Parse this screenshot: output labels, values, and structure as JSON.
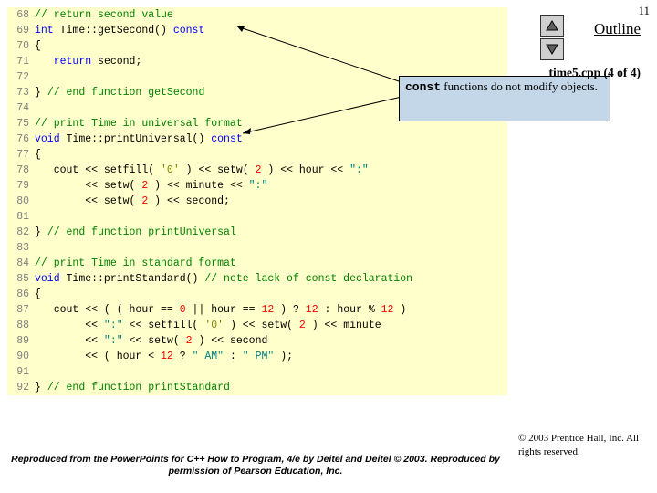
{
  "slideNumber": "11",
  "outline": "Outline",
  "fileLabel": "time5.cpp (4 of 4)",
  "callout": {
    "pre": "const",
    "post": " functions do not modify objects."
  },
  "copyright": "© 2003 Prentice Hall, Inc. All rights reserved.",
  "footer": "Reproduced from the PowerPoints for C++ How to Program, 4/e by Deitel and Deitel © 2003. Reproduced by permission of Pearson Education, Inc.",
  "lines": [
    {
      "n": "68",
      "seg": [
        {
          "c": "cm",
          "t": "// return second value"
        }
      ]
    },
    {
      "n": "69",
      "seg": [
        {
          "c": "kw",
          "t": "int"
        },
        {
          "t": " Time::getSecond() "
        },
        {
          "c": "kw",
          "t": "const"
        }
      ]
    },
    {
      "n": "70",
      "seg": [
        {
          "t": "{"
        }
      ]
    },
    {
      "n": "71",
      "seg": [
        {
          "t": "   "
        },
        {
          "c": "kw",
          "t": "return"
        },
        {
          "t": " second;"
        }
      ]
    },
    {
      "n": "72",
      "seg": []
    },
    {
      "n": "73",
      "seg": [
        {
          "t": "} "
        },
        {
          "c": "cm",
          "t": "// end function getSecond"
        }
      ]
    },
    {
      "n": "74",
      "seg": []
    },
    {
      "n": "75",
      "seg": [
        {
          "c": "cm",
          "t": "// print Time in universal format"
        }
      ]
    },
    {
      "n": "76",
      "seg": [
        {
          "c": "kw",
          "t": "void"
        },
        {
          "t": " Time::printUniversal() "
        },
        {
          "c": "kw",
          "t": "const"
        }
      ]
    },
    {
      "n": "77",
      "seg": [
        {
          "t": "{"
        }
      ]
    },
    {
      "n": "78",
      "seg": [
        {
          "t": "   cout << setfill( "
        },
        {
          "c": "ch",
          "t": "'0'"
        },
        {
          "t": " ) << setw( "
        },
        {
          "c": "nm",
          "t": "2"
        },
        {
          "t": " ) << hour << "
        },
        {
          "c": "st",
          "t": "\":\""
        }
      ]
    },
    {
      "n": "79",
      "seg": [
        {
          "t": "        << setw( "
        },
        {
          "c": "nm",
          "t": "2"
        },
        {
          "t": " ) << minute << "
        },
        {
          "c": "st",
          "t": "\":\""
        }
      ]
    },
    {
      "n": "80",
      "seg": [
        {
          "t": "        << setw( "
        },
        {
          "c": "nm",
          "t": "2"
        },
        {
          "t": " ) << second;"
        }
      ]
    },
    {
      "n": "81",
      "seg": []
    },
    {
      "n": "82",
      "seg": [
        {
          "t": "} "
        },
        {
          "c": "cm",
          "t": "// end function printUniversal"
        }
      ]
    },
    {
      "n": "83",
      "seg": []
    },
    {
      "n": "84",
      "seg": [
        {
          "c": "cm",
          "t": "// print Time in standard format"
        }
      ]
    },
    {
      "n": "85",
      "seg": [
        {
          "c": "kw",
          "t": "void"
        },
        {
          "t": " Time::printStandard() "
        },
        {
          "c": "cm",
          "t": "// note lack of const declaration"
        }
      ]
    },
    {
      "n": "86",
      "seg": [
        {
          "t": "{"
        }
      ]
    },
    {
      "n": "87",
      "seg": [
        {
          "t": "   cout << ( ( hour == "
        },
        {
          "c": "nm",
          "t": "0"
        },
        {
          "t": " || hour == "
        },
        {
          "c": "nm",
          "t": "12"
        },
        {
          "t": " ) ? "
        },
        {
          "c": "nm",
          "t": "12"
        },
        {
          "t": " : hour % "
        },
        {
          "c": "nm",
          "t": "12"
        },
        {
          "t": " )"
        }
      ]
    },
    {
      "n": "88",
      "seg": [
        {
          "t": "        << "
        },
        {
          "c": "st",
          "t": "\":\""
        },
        {
          "t": " << setfill( "
        },
        {
          "c": "ch",
          "t": "'0'"
        },
        {
          "t": " ) << setw( "
        },
        {
          "c": "nm",
          "t": "2"
        },
        {
          "t": " ) << minute"
        }
      ]
    },
    {
      "n": "89",
      "seg": [
        {
          "t": "        << "
        },
        {
          "c": "st",
          "t": "\":\""
        },
        {
          "t": " << setw( "
        },
        {
          "c": "nm",
          "t": "2"
        },
        {
          "t": " ) << second"
        }
      ]
    },
    {
      "n": "90",
      "seg": [
        {
          "t": "        << ( hour < "
        },
        {
          "c": "nm",
          "t": "12"
        },
        {
          "t": " ? "
        },
        {
          "c": "st",
          "t": "\" AM\""
        },
        {
          "t": " : "
        },
        {
          "c": "st",
          "t": "\" PM\""
        },
        {
          "t": " );"
        }
      ]
    },
    {
      "n": "91",
      "seg": []
    },
    {
      "n": "92",
      "seg": [
        {
          "t": "} "
        },
        {
          "c": "cm",
          "t": "// end function printStandard"
        }
      ]
    }
  ]
}
